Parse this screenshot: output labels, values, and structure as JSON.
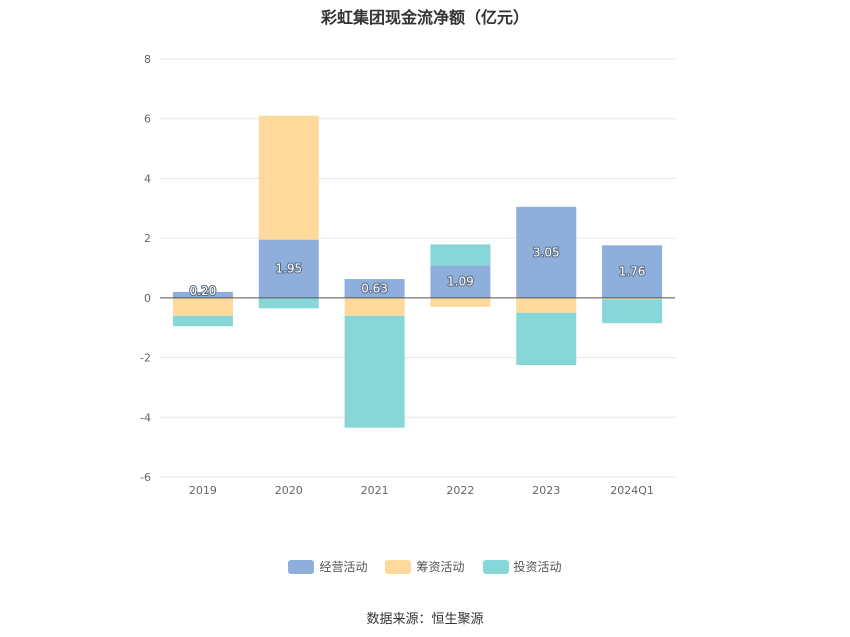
{
  "title": "彩虹集团现金流净额（亿元）",
  "source": "数据来源：恒生聚源",
  "chart_data": {
    "type": "bar",
    "stacked": true,
    "categories": [
      "2019",
      "2020",
      "2021",
      "2022",
      "2023",
      "2024Q1"
    ],
    "ylim": [
      -6,
      8
    ],
    "yticks": [
      -6,
      -4,
      -2,
      0,
      2,
      4,
      6,
      8
    ],
    "grid": true,
    "legend_position": "bottom",
    "series": [
      {
        "name": "经营活动",
        "color": "#8eaedb",
        "values": [
          0.2,
          1.95,
          0.63,
          1.09,
          3.05,
          1.76
        ],
        "labels": [
          "0.20",
          "1.95",
          "0.63",
          "1.09",
          "3.05",
          "1.76"
        ]
      },
      {
        "name": "筹资活动",
        "color": "#fdd99b",
        "values": [
          -0.6,
          4.15,
          -0.6,
          -0.3,
          -0.5,
          -0.05
        ]
      },
      {
        "name": "投资活动",
        "color": "#87d7d8",
        "values": [
          -0.35,
          -0.35,
          -3.75,
          0.7,
          -1.75,
          -0.8
        ]
      }
    ]
  }
}
